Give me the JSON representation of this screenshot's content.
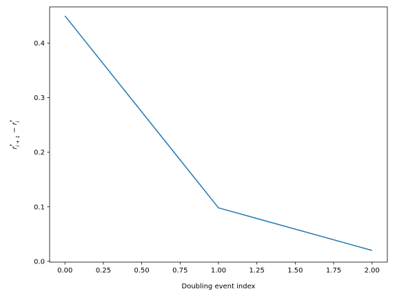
{
  "chart_data": {
    "type": "line",
    "x": [
      0,
      1,
      2
    ],
    "series": [
      {
        "values": [
          0.45,
          0.098,
          0.02
        ],
        "color": "#1f77b4"
      }
    ],
    "xlabel": "Doubling event index",
    "ylabel": {
      "base": "r",
      "sub1": "i + 1",
      "minus": " − ",
      "sub2": "i",
      "sup": "*"
    },
    "xlim": [
      -0.1,
      2.1
    ],
    "ylim": [
      -0.0015,
      0.4665
    ],
    "xticks": [
      0.0,
      0.25,
      0.5,
      0.75,
      1.0,
      1.25,
      1.5,
      1.75,
      2.0
    ],
    "xtick_labels": [
      "0.00",
      "0.25",
      "0.50",
      "0.75",
      "1.00",
      "1.25",
      "1.50",
      "1.75",
      "2.00"
    ],
    "yticks": [
      0.0,
      0.1,
      0.2,
      0.3,
      0.4
    ],
    "ytick_labels": [
      "0.0",
      "0.1",
      "0.2",
      "0.3",
      "0.4"
    ],
    "grid": false
  }
}
